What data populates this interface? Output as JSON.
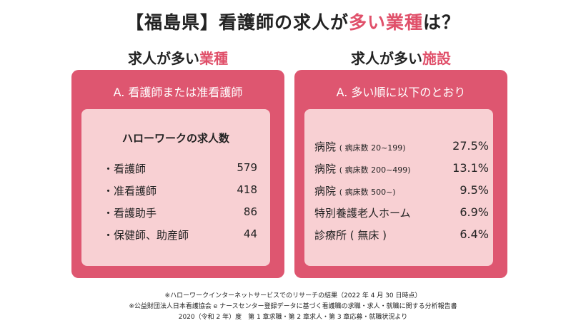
{
  "title": {
    "pre": "【福島県】看護師の求人が",
    "accent": "多い業種",
    "post": "は？"
  },
  "left": {
    "heading_pre": "求人が多い",
    "heading_accent": "業種",
    "panel_title": "A. 看護師または准看護師",
    "subtitle": "ハローワークの求人数",
    "rows": [
      {
        "label": "・看護師",
        "value": "579"
      },
      {
        "label": "・准看護師",
        "value": "418"
      },
      {
        "label": "・看護助手",
        "value": "86"
      },
      {
        "label": "・保健師、助産師",
        "value": "44"
      }
    ]
  },
  "right": {
    "heading_pre": "求人が多い",
    "heading_accent": "施設",
    "panel_title": "A. 多い順に以下のとおり",
    "rows": [
      {
        "label": "病院",
        "note": "( 病床数 20~199)",
        "value": "27.5%"
      },
      {
        "label": "病院",
        "note": "( 病床数 200~499)",
        "value": "13.1%"
      },
      {
        "label": "病院",
        "note": "( 病床数 500~)",
        "value": "9.5%"
      },
      {
        "label": "特別養護老人ホーム",
        "note": "",
        "value": "6.9%"
      },
      {
        "label": "診療所 ( 無床 )",
        "note": "",
        "value": "6.4%"
      }
    ]
  },
  "footnotes": [
    "※ハローワークインターネットサービスでのリサーチの結果（2022 年 4 月 30 日時点）",
    "※公益財団法人日本看護協会 e ナースセンター登録データに基づく看護職の求職・求人・就職に関する分析報告書",
    "2020（令和 2 年）度　第 1 章求職・第 2 章求人・第 3 章応募・就職状況より"
  ],
  "colors": {
    "accent": "#e0506a",
    "panel": "#de5670",
    "inner": "#f8d0d3"
  }
}
